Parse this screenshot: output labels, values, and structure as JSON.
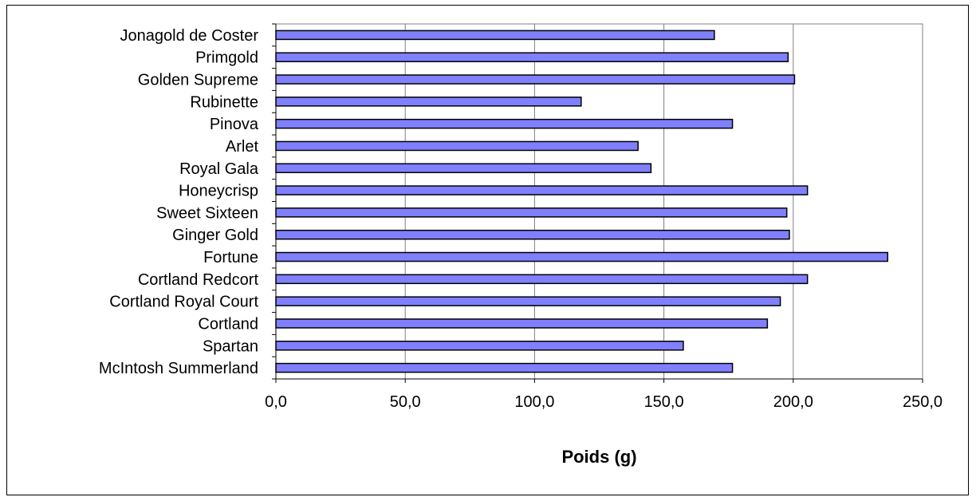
{
  "chart_data": {
    "type": "bar",
    "orientation": "horizontal",
    "categories": [
      "McIntosh Summerland",
      "Spartan",
      "Cortland",
      "Cortland Royal Court",
      "Cortland Redcort",
      "Fortune",
      "Ginger Gold",
      "Sweet Sixteen",
      "Honeycrisp",
      "Royal Gala",
      "Arlet",
      "Pinova",
      "Rubinette",
      "Golden Supreme",
      "Primgold",
      "Jonagold de Coster"
    ],
    "values": [
      176.5,
      157.5,
      190,
      195,
      205.5,
      236.5,
      198.5,
      197.5,
      205.5,
      145,
      140,
      176.5,
      118,
      200.5,
      198,
      169.5
    ],
    "xlabel": "Poids (g)",
    "ylabel": "",
    "xlim": [
      0,
      250
    ],
    "xticks": [
      0,
      50,
      100,
      150,
      200,
      250
    ],
    "xtick_labels": [
      "0,0",
      "50,0",
      "100,0",
      "150,0",
      "200,0",
      "250,0"
    ],
    "grid": "vertical",
    "legend": "none",
    "colors": {
      "bar_fill": "#8080ff",
      "bar_stroke": "#000000",
      "gridline": "#808080",
      "plot_border": "#808080"
    }
  }
}
